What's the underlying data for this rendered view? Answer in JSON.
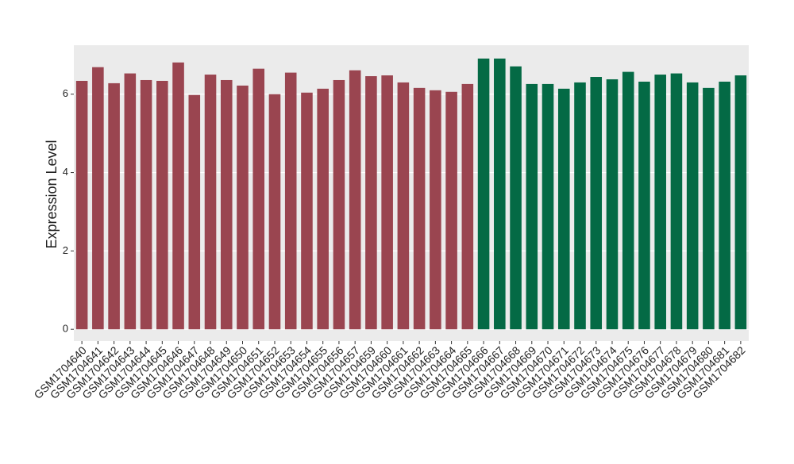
{
  "chart_data": {
    "type": "bar",
    "y_label": "Expression Level",
    "categories": [
      "GSM1704640",
      "GSM1704641",
      "GSM1704642",
      "GSM1704643",
      "GSM1704644",
      "GSM1704645",
      "GSM1704646",
      "GSM1704647",
      "GSM1704648",
      "GSM1704649",
      "GSM1704650",
      "GSM1704651",
      "GSM1704652",
      "GSM1704653",
      "GSM1704654",
      "GSM1704655",
      "GSM1704656",
      "GSM1704657",
      "GSM1704659",
      "GSM1704660",
      "GSM1704661",
      "GSM1704662",
      "GSM1704663",
      "GSM1704664",
      "GSM1704665",
      "GSM1704666",
      "GSM1704667",
      "GSM1704668",
      "GSM1704669",
      "GSM1704670",
      "GSM1704671",
      "GSM1704672",
      "GSM1704673",
      "GSM1704674",
      "GSM1704675",
      "GSM1704676",
      "GSM1704677",
      "GSM1704678",
      "GSM1704679",
      "GSM1704680",
      "GSM1704681",
      "GSM1704682"
    ],
    "values": [
      6.34,
      6.69,
      6.28,
      6.53,
      6.36,
      6.34,
      6.81,
      5.98,
      6.5,
      6.36,
      6.22,
      6.65,
      6.0,
      6.55,
      6.04,
      6.14,
      6.36,
      6.61,
      6.46,
      6.48,
      6.3,
      6.16,
      6.1,
      6.06,
      6.26,
      6.91,
      6.91,
      6.71,
      6.26,
      6.26,
      6.14,
      6.3,
      6.44,
      6.38,
      6.57,
      6.32,
      6.5,
      6.53,
      6.3,
      6.16,
      6.32,
      6.48
    ],
    "colors": [
      "#9a4550",
      "#9a4550",
      "#9a4550",
      "#9a4550",
      "#9a4550",
      "#9a4550",
      "#9a4550",
      "#9a4550",
      "#9a4550",
      "#9a4550",
      "#9a4550",
      "#9a4550",
      "#9a4550",
      "#9a4550",
      "#9a4550",
      "#9a4550",
      "#9a4550",
      "#9a4550",
      "#9a4550",
      "#9a4550",
      "#9a4550",
      "#9a4550",
      "#9a4550",
      "#9a4550",
      "#9a4550",
      "#046a45",
      "#046a45",
      "#046a45",
      "#046a45",
      "#046a45",
      "#046a45",
      "#046a45",
      "#046a45",
      "#046a45",
      "#046a45",
      "#046a45",
      "#046a45",
      "#046a45",
      "#046a45",
      "#046a45",
      "#046a45",
      "#046a45"
    ],
    "ylim": [
      -0.3,
      7.25
    ],
    "yticks": [
      0,
      2,
      4,
      6
    ],
    "grid": true
  }
}
